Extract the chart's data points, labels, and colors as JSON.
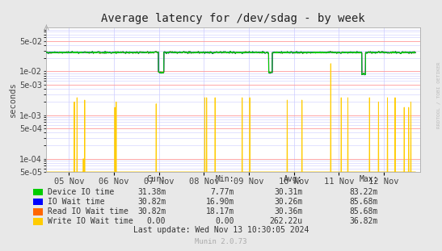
{
  "title": "Average latency for /dev/sdag - by week",
  "ylabel": "seconds",
  "watermark": "RRDTOOL / TOBI OETIKER",
  "munin_version": "Munin 2.0.73",
  "last_update": "Last update: Wed Nov 13 10:30:05 2024",
  "xlim_days": [
    0,
    8.3
  ],
  "ylim_log": [
    5e-05,
    0.1
  ],
  "yticks": [
    5e-05,
    0.0001,
    0.0005,
    0.001,
    0.005,
    0.01,
    0.05
  ],
  "xtick_labels": [
    "05 Nov",
    "06 Nov",
    "07 Nov",
    "08 Nov",
    "09 Nov",
    "10 Nov",
    "11 Nov",
    "12 Nov"
  ],
  "xtick_positions": [
    0.5,
    1.5,
    2.5,
    3.5,
    4.5,
    5.5,
    6.5,
    7.5
  ],
  "background_color": "#e8e8e8",
  "plot_bg_color": "#ffffff",
  "grid_color_major": "#ff9999",
  "grid_color_minor": "#ccccff",
  "colors": {
    "device_io": "#00cc00",
    "io_wait": "#0000ff",
    "read_io_wait": "#ff6600",
    "write_io_wait": "#ffcc00"
  },
  "legend": [
    {
      "label": "Device IO time",
      "color": "#00cc00",
      "cur": "31.38m",
      "min": "7.77m",
      "avg": "30.31m",
      "max": "83.22m"
    },
    {
      "label": "IO Wait time",
      "color": "#0000ff",
      "cur": "30.82m",
      "min": "16.90m",
      "avg": "30.26m",
      "max": "85.68m"
    },
    {
      "label": "Read IO Wait time",
      "color": "#ff6600",
      "cur": "30.82m",
      "min": "18.17m",
      "avg": "30.36m",
      "max": "85.68m"
    },
    {
      "label": "Write IO Wait time",
      "color": "#ffcc00",
      "cur": "0.00",
      "min": "0.00",
      "avg": "262.22u",
      "max": "36.82m"
    }
  ]
}
